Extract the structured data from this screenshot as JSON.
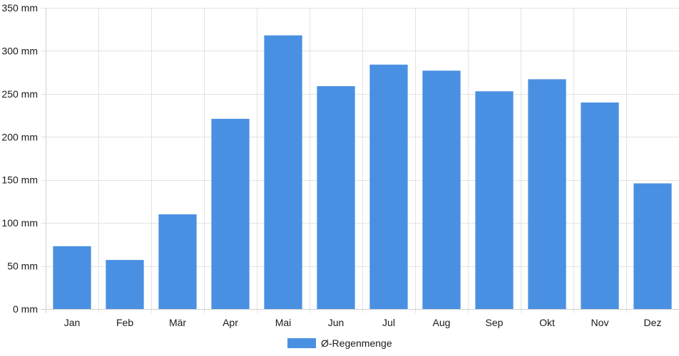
{
  "chart_data": {
    "type": "bar",
    "categories": [
      "Jan",
      "Feb",
      "Mär",
      "Apr",
      "Mai",
      "Jun",
      "Jul",
      "Aug",
      "Sep",
      "Okt",
      "Nov",
      "Dez"
    ],
    "series": [
      {
        "name": "Ø-Regenmenge",
        "color": "#4a90e2",
        "values": [
          73,
          57,
          110,
          221,
          318,
          259,
          284,
          277,
          253,
          267,
          240,
          146
        ]
      }
    ],
    "ylim": [
      0,
      350
    ],
    "y_ticks": [
      0,
      50,
      100,
      150,
      200,
      250,
      300,
      350
    ],
    "y_tick_labels": [
      "0 mm",
      "50 mm",
      "100 mm",
      "150 mm",
      "200 mm",
      "250 mm",
      "300 mm",
      "350 mm"
    ],
    "grid": true,
    "legend": "bottom-center",
    "title": "",
    "xlabel": "",
    "ylabel": ""
  }
}
